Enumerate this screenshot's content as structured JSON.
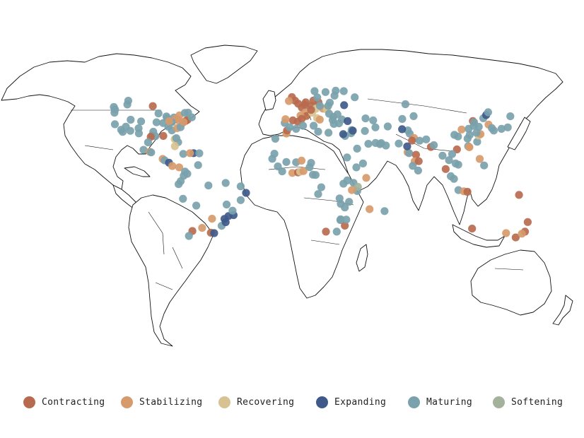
{
  "legend": {
    "items": [
      {
        "key": "contracting",
        "label": "Contracting",
        "color": "#b86a4e"
      },
      {
        "key": "stabilizing",
        "label": "Stabilizing",
        "color": "#d79a6b"
      },
      {
        "key": "recovering",
        "label": "Recovering",
        "color": "#d8c291"
      },
      {
        "key": "expanding",
        "label": "Expanding",
        "color": "#3f5a8a"
      },
      {
        "key": "maturing",
        "label": "Maturing",
        "color": "#79a2ad"
      },
      {
        "key": "softening",
        "label": "Softening",
        "color": "#a4b29b"
      }
    ]
  },
  "cities": [
    [
      "maturing",
      -122.4,
      37.8
    ],
    [
      "maturing",
      -118.2,
      34.1
    ],
    [
      "maturing",
      -117.2,
      32.7
    ],
    [
      "maturing",
      -122.7,
      45.5
    ],
    [
      "maturing",
      -122.3,
      47.6
    ],
    [
      "maturing",
      -123.1,
      49.3
    ],
    [
      "maturing",
      -112.1,
      33.4
    ],
    [
      "maturing",
      -104.9,
      39.7
    ],
    [
      "maturing",
      -111.9,
      40.8
    ],
    [
      "maturing",
      -115.1,
      36.2
    ],
    [
      "maturing",
      -97.7,
      30.3
    ],
    [
      "maturing",
      -95.4,
      29.8
    ],
    [
      "maturing",
      -96.8,
      32.8
    ],
    [
      "contracting",
      -98.5,
      29.4
    ],
    [
      "maturing",
      -90.2,
      38.6
    ],
    [
      "maturing",
      -87.6,
      41.9
    ],
    [
      "maturing",
      -83.0,
      42.3
    ],
    [
      "stabilizing",
      -81.7,
      41.5
    ],
    [
      "maturing",
      -84.4,
      33.7
    ],
    [
      "contracting",
      -90.1,
      30.0
    ],
    [
      "maturing",
      -80.2,
      25.8
    ],
    [
      "recovering",
      -82.5,
      27.9
    ],
    [
      "maturing",
      -81.4,
      28.5
    ],
    [
      "maturing",
      -86.8,
      36.2
    ],
    [
      "stabilizing",
      -80.8,
      35.2
    ],
    [
      "maturing",
      -77.0,
      38.9
    ],
    [
      "contracting",
      -75.2,
      40.0
    ],
    [
      "contracting",
      -74.0,
      40.7
    ],
    [
      "maturing",
      -71.1,
      42.4
    ],
    [
      "stabilizing",
      -79.4,
      43.7
    ],
    [
      "maturing",
      -73.6,
      45.5
    ],
    [
      "maturing",
      -75.7,
      45.4
    ],
    [
      "maturing",
      -114.1,
      51.0
    ],
    [
      "maturing",
      -113.5,
      53.5
    ],
    [
      "contracting",
      -97.1,
      49.9
    ],
    [
      "maturing",
      -93.3,
      45.0
    ],
    [
      "maturing",
      -88.0,
      43.0
    ],
    [
      "maturing",
      -94.6,
      39.1
    ],
    [
      "stabilizing",
      -80.0,
      40.4
    ],
    [
      "maturing",
      -84.5,
      39.1
    ],
    [
      "stabilizing",
      -86.2,
      39.8
    ],
    [
      "maturing",
      -78.6,
      35.8
    ],
    [
      "stabilizing",
      -76.6,
      39.3
    ],
    [
      "maturing",
      -106.6,
      35.1
    ],
    [
      "maturing",
      -100.3,
      25.7
    ],
    [
      "maturing",
      -103.3,
      20.7
    ],
    [
      "stabilizing",
      -99.1,
      19.4
    ],
    [
      "maturing",
      -98.2,
      19.0
    ],
    [
      "maturing",
      -106.4,
      31.7
    ],
    [
      "stabilizing",
      -90.5,
      14.6
    ],
    [
      "maturing",
      -89.2,
      13.7
    ],
    [
      "expanding",
      -86.3,
      12.1
    ],
    [
      "stabilizing",
      -84.1,
      9.9
    ],
    [
      "stabilizing",
      -79.5,
      9.0
    ],
    [
      "recovering",
      -82.4,
      23.1
    ],
    [
      "maturing",
      -76.8,
      18.0
    ],
    [
      "expanding",
      -69.9,
      18.5
    ],
    [
      "maturing",
      -66.1,
      18.4
    ],
    [
      "stabilizing",
      -72.3,
      18.5
    ],
    [
      "maturing",
      -74.1,
      4.7
    ],
    [
      "maturing",
      -75.6,
      6.2
    ],
    [
      "maturing",
      -76.5,
      3.4
    ],
    [
      "maturing",
      -66.9,
      10.5
    ],
    [
      "maturing",
      -79.9,
      -2.2
    ],
    [
      "maturing",
      -78.5,
      -0.2
    ],
    [
      "maturing",
      -77.0,
      -12.0
    ],
    [
      "maturing",
      -68.1,
      -16.5
    ],
    [
      "contracting",
      -70.7,
      -33.5
    ],
    [
      "maturing",
      -73.0,
      -36.8
    ],
    [
      "stabilizing",
      -64.2,
      -31.4
    ],
    [
      "contracting",
      -58.4,
      -34.6
    ],
    [
      "expanding",
      -56.2,
      -34.9
    ],
    [
      "stabilizing",
      -57.6,
      -25.3
    ],
    [
      "expanding",
      -46.6,
      -23.5
    ],
    [
      "expanding",
      -43.2,
      -22.9
    ],
    [
      "maturing",
      -43.9,
      -19.9
    ],
    [
      "maturing",
      -47.9,
      -15.8
    ],
    [
      "maturing",
      -38.5,
      -12.9
    ],
    [
      "expanding",
      -34.9,
      -8.0
    ],
    [
      "maturing",
      -38.5,
      -3.7
    ],
    [
      "maturing",
      -48.5,
      -1.4
    ],
    [
      "maturing",
      -60.0,
      -3.1
    ],
    [
      "expanding",
      -49.3,
      -25.4
    ],
    [
      "maturing",
      -51.2,
      -30.0
    ],
    [
      "expanding",
      -48.5,
      -27.6
    ],
    [
      "contracting",
      -0.1,
      51.5
    ],
    [
      "contracting",
      -2.2,
      53.5
    ],
    [
      "contracting",
      -4.3,
      55.9
    ],
    [
      "stabilizing",
      -6.3,
      53.3
    ],
    [
      "contracting",
      2.3,
      48.9
    ],
    [
      "stabilizing",
      4.8,
      45.8
    ],
    [
      "contracting",
      5.4,
      43.3
    ],
    [
      "stabilizing",
      1.4,
      43.6
    ],
    [
      "contracting",
      -3.7,
      40.4
    ],
    [
      "contracting",
      2.2,
      41.4
    ],
    [
      "contracting",
      -0.4,
      39.5
    ],
    [
      "maturing",
      -9.1,
      38.7
    ],
    [
      "stabilizing",
      -8.6,
      41.2
    ],
    [
      "contracting",
      4.4,
      50.8
    ],
    [
      "contracting",
      4.9,
      52.4
    ],
    [
      "contracting",
      8.7,
      50.1
    ],
    [
      "contracting",
      13.4,
      52.5
    ],
    [
      "recovering",
      11.6,
      48.1
    ],
    [
      "contracting",
      10.0,
      53.6
    ],
    [
      "recovering",
      9.2,
      45.5
    ],
    [
      "recovering",
      12.5,
      41.9
    ],
    [
      "stabilizing",
      14.3,
      40.9
    ],
    [
      "contracting",
      8.5,
      47.4
    ],
    [
      "stabilizing",
      16.4,
      48.2
    ],
    [
      "maturing",
      14.4,
      50.1
    ],
    [
      "recovering",
      19.0,
      47.5
    ],
    [
      "maturing",
      21.0,
      52.2
    ],
    [
      "maturing",
      19.9,
      50.1
    ],
    [
      "maturing",
      12.6,
      55.7
    ],
    [
      "maturing",
      18.1,
      59.3
    ],
    [
      "maturing",
      10.8,
      59.9
    ],
    [
      "maturing",
      24.9,
      60.2
    ],
    [
      "maturing",
      24.1,
      56.9
    ],
    [
      "maturing",
      30.3,
      59.9
    ],
    [
      "maturing",
      37.6,
      55.8
    ],
    [
      "expanding",
      30.5,
      50.5
    ],
    [
      "maturing",
      26.1,
      44.4
    ],
    [
      "maturing",
      23.3,
      42.7
    ],
    [
      "maturing",
      20.5,
      44.8
    ],
    [
      "maturing",
      23.7,
      38.0
    ],
    [
      "maturing",
      22.9,
      40.6
    ],
    [
      "maturing",
      29.0,
      41.0
    ],
    [
      "expanding",
      32.9,
      39.9
    ],
    [
      "maturing",
      27.1,
      38.4
    ],
    [
      "maturing",
      35.2,
      31.8
    ],
    [
      "maturing",
      35.5,
      33.9
    ],
    [
      "expanding",
      36.3,
      33.5
    ],
    [
      "maturing",
      31.2,
      30.0
    ],
    [
      "expanding",
      29.9,
      31.2
    ],
    [
      "maturing",
      44.4,
      33.3
    ],
    [
      "maturing",
      46.7,
      24.7
    ],
    [
      "maturing",
      39.2,
      21.5
    ],
    [
      "maturing",
      55.3,
      25.2
    ],
    [
      "maturing",
      54.4,
      24.5
    ],
    [
      "maturing",
      51.5,
      25.3
    ],
    [
      "maturing",
      51.4,
      35.7
    ],
    [
      "maturing",
      59.6,
      36.3
    ],
    [
      "maturing",
      44.8,
      41.7
    ],
    [
      "maturing",
      49.9,
      40.4
    ],
    [
      "maturing",
      69.3,
      41.3
    ],
    [
      "maturing",
      76.9,
      43.2
    ],
    [
      "maturing",
      71.4,
      51.2
    ],
    [
      "maturing",
      58.4,
      23.6
    ],
    [
      "maturing",
      67.0,
      24.9
    ],
    [
      "maturing",
      74.3,
      31.5
    ],
    [
      "maturing",
      73.0,
      33.7
    ],
    [
      "expanding",
      69.2,
      34.5
    ],
    [
      "stabilizing",
      77.2,
      28.6
    ],
    [
      "contracting",
      75.8,
      26.9
    ],
    [
      "maturing",
      80.9,
      26.8
    ],
    [
      "contracting",
      88.4,
      22.6
    ],
    [
      "maturing",
      90.4,
      23.8
    ],
    [
      "stabilizing",
      72.9,
      19.1
    ],
    [
      "maturing",
      73.9,
      18.5
    ],
    [
      "contracting",
      78.5,
      17.4
    ],
    [
      "stabilizing",
      77.6,
      13.0
    ],
    [
      "contracting",
      80.3,
      13.1
    ],
    [
      "maturing",
      76.3,
      10.0
    ],
    [
      "maturing",
      79.9,
      6.9
    ],
    [
      "expanding",
      72.6,
      23.0
    ],
    [
      "maturing",
      85.3,
      27.7
    ],
    [
      "maturing",
      96.2,
      16.8
    ],
    [
      "maturing",
      100.5,
      13.8
    ],
    [
      "contracting",
      98.3,
      7.9
    ],
    [
      "maturing",
      101.7,
      3.1
    ],
    [
      "maturing",
      103.8,
      1.3
    ],
    [
      "maturing",
      106.8,
      -6.2
    ],
    [
      "stabilizing",
      110.4,
      -7.0
    ],
    [
      "contracting",
      112.8,
      -7.3
    ],
    [
      "maturing",
      106.7,
      10.8
    ],
    [
      "contracting",
      105.8,
      21.0
    ],
    [
      "maturing",
      104.9,
      11.6
    ],
    [
      "maturing",
      102.6,
      17.9
    ],
    [
      "stabilizing",
      121.0,
      14.6
    ],
    [
      "maturing",
      123.9,
      10.3
    ],
    [
      "maturing",
      113.3,
      23.1
    ],
    [
      "stabilizing",
      114.1,
      22.5
    ],
    [
      "stabilizing",
      113.9,
      22.6
    ],
    [
      "maturing",
      119.3,
      26.1
    ],
    [
      "recovering",
      120.2,
      30.3
    ],
    [
      "stabilizing",
      121.5,
      31.2
    ],
    [
      "maturing",
      118.8,
      32.1
    ],
    [
      "maturing",
      114.3,
      30.6
    ],
    [
      "maturing",
      112.9,
      28.2
    ],
    [
      "maturing",
      104.1,
      30.7
    ],
    [
      "maturing",
      106.5,
      29.6
    ],
    [
      "stabilizing",
      108.9,
      34.3
    ],
    [
      "maturing",
      113.6,
      34.7
    ],
    [
      "maturing",
      117.0,
      36.7
    ],
    [
      "maturing",
      120.4,
      36.1
    ],
    [
      "contracting",
      116.4,
      39.9
    ],
    [
      "maturing",
      117.2,
      39.1
    ],
    [
      "maturing",
      123.4,
      41.8
    ],
    [
      "expanding",
      125.3,
      43.9
    ],
    [
      "maturing",
      126.6,
      45.8
    ],
    [
      "stabilizing",
      126.9,
      37.6
    ],
    [
      "maturing",
      129.1,
      35.2
    ],
    [
      "maturing",
      135.5,
      34.7
    ],
    [
      "maturing",
      139.7,
      35.7
    ],
    [
      "maturing",
      130.4,
      33.6
    ],
    [
      "maturing",
      141.4,
      43.1
    ],
    [
      "contracting",
      147.2,
      -9.4
    ],
    [
      "contracting",
      115.9,
      -31.9
    ],
    [
      "stabilizing",
      138.6,
      -34.9
    ],
    [
      "contracting",
      145.0,
      -37.8
    ],
    [
      "contracting",
      151.2,
      -33.9
    ],
    [
      "contracting",
      153.0,
      -27.5
    ],
    [
      "stabilizing",
      149.1,
      -35.3
    ],
    [
      "maturing",
      -17.4,
      14.7
    ],
    [
      "maturing",
      -13.7,
      9.6
    ],
    [
      "maturing",
      -10.8,
      6.3
    ],
    [
      "stabilizing",
      -4.0,
      5.3
    ],
    [
      "contracting",
      -0.2,
      5.6
    ],
    [
      "recovering",
      1.2,
      6.1
    ],
    [
      "stabilizing",
      3.4,
      6.5
    ],
    [
      "maturing",
      7.5,
      9.1
    ],
    [
      "maturing",
      8.5,
      12.0
    ],
    [
      "maturing",
      -8.0,
      12.6
    ],
    [
      "maturing",
      -1.5,
      12.4
    ],
    [
      "stabilizing",
      2.1,
      13.5
    ],
    [
      "maturing",
      15.3,
      -4.3
    ],
    [
      "maturing",
      13.2,
      -8.8
    ],
    [
      "maturing",
      11.5,
      3.9
    ],
    [
      "maturing",
      9.7,
      4.1
    ],
    [
      "maturing",
      32.6,
      0.3
    ],
    [
      "maturing",
      36.8,
      -1.3
    ],
    [
      "maturing",
      39.3,
      -6.8
    ],
    [
      "maturing",
      38.7,
      9.0
    ],
    [
      "maturing",
      32.5,
      15.6
    ],
    [
      "maturing",
      28.3,
      -15.4
    ],
    [
      "maturing",
      31.0,
      -17.8
    ],
    [
      "maturing",
      27.5,
      -11.7
    ],
    [
      "maturing",
      33.8,
      -14.0
    ],
    [
      "maturing",
      28.0,
      -26.2
    ],
    [
      "contracting",
      31.0,
      -29.9
    ],
    [
      "contracting",
      18.4,
      -33.9
    ],
    [
      "maturing",
      25.6,
      -33.9
    ],
    [
      "maturing",
      28.2,
      -25.7
    ],
    [
      "stabilizing",
      47.5,
      -18.9
    ],
    [
      "maturing",
      43.1,
      11.6
    ],
    [
      "stabilizing",
      45.3,
      2.0
    ],
    [
      "softening",
      39.7,
      -4.0
    ],
    [
      "stabilizing",
      35.7,
      -6.2
    ],
    [
      "maturing",
      30.1,
      -1.9
    ],
    [
      "maturing",
      32.0,
      -25.9
    ],
    [
      "maturing",
      57.5,
      -20.2
    ],
    [
      "maturing",
      -15.4,
      28.1
    ],
    [
      "stabilizing",
      -8.0,
      31.6
    ],
    [
      "contracting",
      -7.6,
      33.6
    ],
    [
      "maturing",
      -1.5,
      34.7
    ],
    [
      "maturing",
      3.1,
      36.8
    ],
    [
      "maturing",
      10.2,
      36.8
    ],
    [
      "maturing",
      13.2,
      32.9
    ],
    [
      "maturing",
      20.1,
      32.1
    ],
    [
      "maturing",
      -5.8,
      35.8
    ],
    [
      "maturing",
      -16.0,
      18.1
    ]
  ]
}
